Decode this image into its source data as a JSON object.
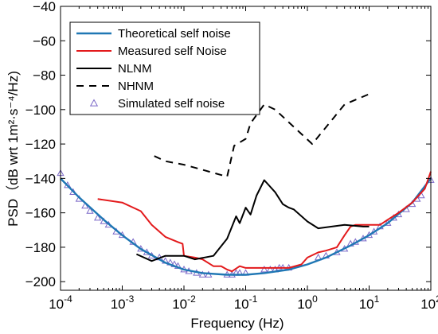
{
  "chart_data": {
    "type": "line",
    "xlabel": "Frequency (Hz)",
    "ylabel": "PSD（dB wrt 1m²·s⁻⁴/Hz)",
    "x_scale": "log",
    "xlim": [
      0.0001,
      100
    ],
    "ylim": [
      -205,
      -40
    ],
    "x_tick_labels": [
      {
        "value": 0.0001,
        "base": "10",
        "exp": "-4"
      },
      {
        "value": 0.001,
        "base": "10",
        "exp": "-3"
      },
      {
        "value": 0.01,
        "base": "10",
        "exp": "-2"
      },
      {
        "value": 0.1,
        "base": "10",
        "exp": "-1"
      },
      {
        "value": 1,
        "base": "10",
        "exp": "0"
      },
      {
        "value": 10,
        "base": "10",
        "exp": "1"
      },
      {
        "value": 100,
        "base": "10",
        "exp": "2"
      }
    ],
    "y_ticks": [
      -200,
      -180,
      -160,
      -140,
      -120,
      -100,
      -80,
      -60,
      -40
    ],
    "y_tick_labels": [
      "−200",
      "−180",
      "−160",
      "−140",
      "−120",
      "−100",
      "−80",
      "−60",
      "−40"
    ],
    "legend_position": "top-left",
    "series": [
      {
        "name": "Theoretical self noise",
        "color": "#1f77b4",
        "style": "solid",
        "x": [
          0.0001,
          0.0002,
          0.0005,
          0.001,
          0.002,
          0.005,
          0.01,
          0.02,
          0.05,
          0.1,
          0.2,
          0.5,
          1,
          2,
          5,
          10,
          20,
          50,
          100
        ],
        "y": [
          -140,
          -151,
          -164,
          -173,
          -181,
          -189,
          -193,
          -195,
          -196,
          -196,
          -195,
          -193,
          -190,
          -186,
          -179,
          -173,
          -166,
          -154,
          -140
        ]
      },
      {
        "name": "Measured self Noise",
        "color": "#e31a1c",
        "style": "solid",
        "x": [
          0.0004,
          0.001,
          0.002,
          0.003,
          0.005,
          0.008,
          0.0095,
          0.01,
          0.015,
          0.02,
          0.03,
          0.04,
          0.05,
          0.06,
          0.08,
          0.1,
          0.2,
          0.5,
          0.8,
          1,
          1.5,
          2,
          3,
          4,
          5,
          6,
          10,
          15,
          20,
          30,
          50,
          80,
          100
        ],
        "y": [
          -152,
          -154,
          -159,
          -167,
          -174,
          -177,
          -178,
          -185,
          -186,
          -187,
          -191,
          -191,
          -193,
          -194,
          -191,
          -192,
          -192,
          -192,
          -190,
          -186,
          -183,
          -182,
          -180,
          -173,
          -168,
          -167,
          -167,
          -167,
          -164,
          -160,
          -154,
          -146,
          -136
        ]
      },
      {
        "name": "NLNM",
        "color": "#000000",
        "style": "solid",
        "x": [
          0.0017,
          0.003,
          0.005,
          0.01,
          0.015,
          0.03,
          0.05,
          0.07,
          0.08,
          0.1,
          0.12,
          0.15,
          0.2,
          0.3,
          0.4,
          0.5,
          0.6,
          1,
          1.5,
          4,
          8,
          10
        ],
        "y": [
          -184,
          -188,
          -185,
          -185,
          -187,
          -185,
          -175,
          -162,
          -166,
          -157,
          -161,
          -150,
          -141,
          -148,
          -155,
          -157,
          -158,
          -165,
          -169,
          -167,
          -168,
          -168
        ]
      },
      {
        "name": "NHNM",
        "color": "#000000",
        "style": "dashed",
        "x": [
          0.0033,
          0.005,
          0.01,
          0.02,
          0.05,
          0.065,
          0.1,
          0.12,
          0.2,
          0.3,
          1.2,
          4,
          10
        ],
        "y": [
          -127,
          -130,
          -132,
          -135,
          -139,
          -121,
          -117,
          -108,
          -97,
          -100,
          -120,
          -97,
          -91
        ]
      },
      {
        "name": "Simulated self noise",
        "color": "#7b68c8",
        "style": "markers",
        "marker": "triangle",
        "x": [
          0.0001,
          0.00013,
          0.00016,
          0.0002,
          0.00025,
          0.0003,
          0.0004,
          0.0005,
          0.0006,
          0.0008,
          0.001,
          0.0015,
          0.002,
          0.0025,
          0.003,
          0.004,
          0.005,
          0.006,
          0.007,
          0.008,
          0.01,
          0.012,
          0.016,
          0.02,
          0.025,
          0.05,
          0.06,
          0.07,
          0.08,
          0.1,
          0.2,
          0.25,
          0.3,
          0.35,
          0.4,
          0.5,
          1.5,
          2,
          3,
          4,
          5,
          6,
          8,
          10,
          12,
          15,
          20,
          25,
          30,
          40,
          50,
          60,
          70,
          100
        ],
        "y": [
          -137,
          -144,
          -148,
          -152,
          -156,
          -159,
          -163,
          -165,
          -167,
          -171,
          -173,
          -177,
          -181,
          -183,
          -185,
          -186,
          -188,
          -189,
          -190,
          -191,
          -193,
          -194,
          -195,
          -196,
          -196,
          -196,
          -196,
          -195,
          -195,
          -195,
          -193,
          -193,
          -193,
          -192,
          -192,
          -192,
          -186,
          -185,
          -183,
          -181,
          -178,
          -177,
          -175,
          -173,
          -171,
          -168,
          -166,
          -163,
          -161,
          -158,
          -155,
          -152,
          -150,
          -141
        ]
      }
    ]
  }
}
